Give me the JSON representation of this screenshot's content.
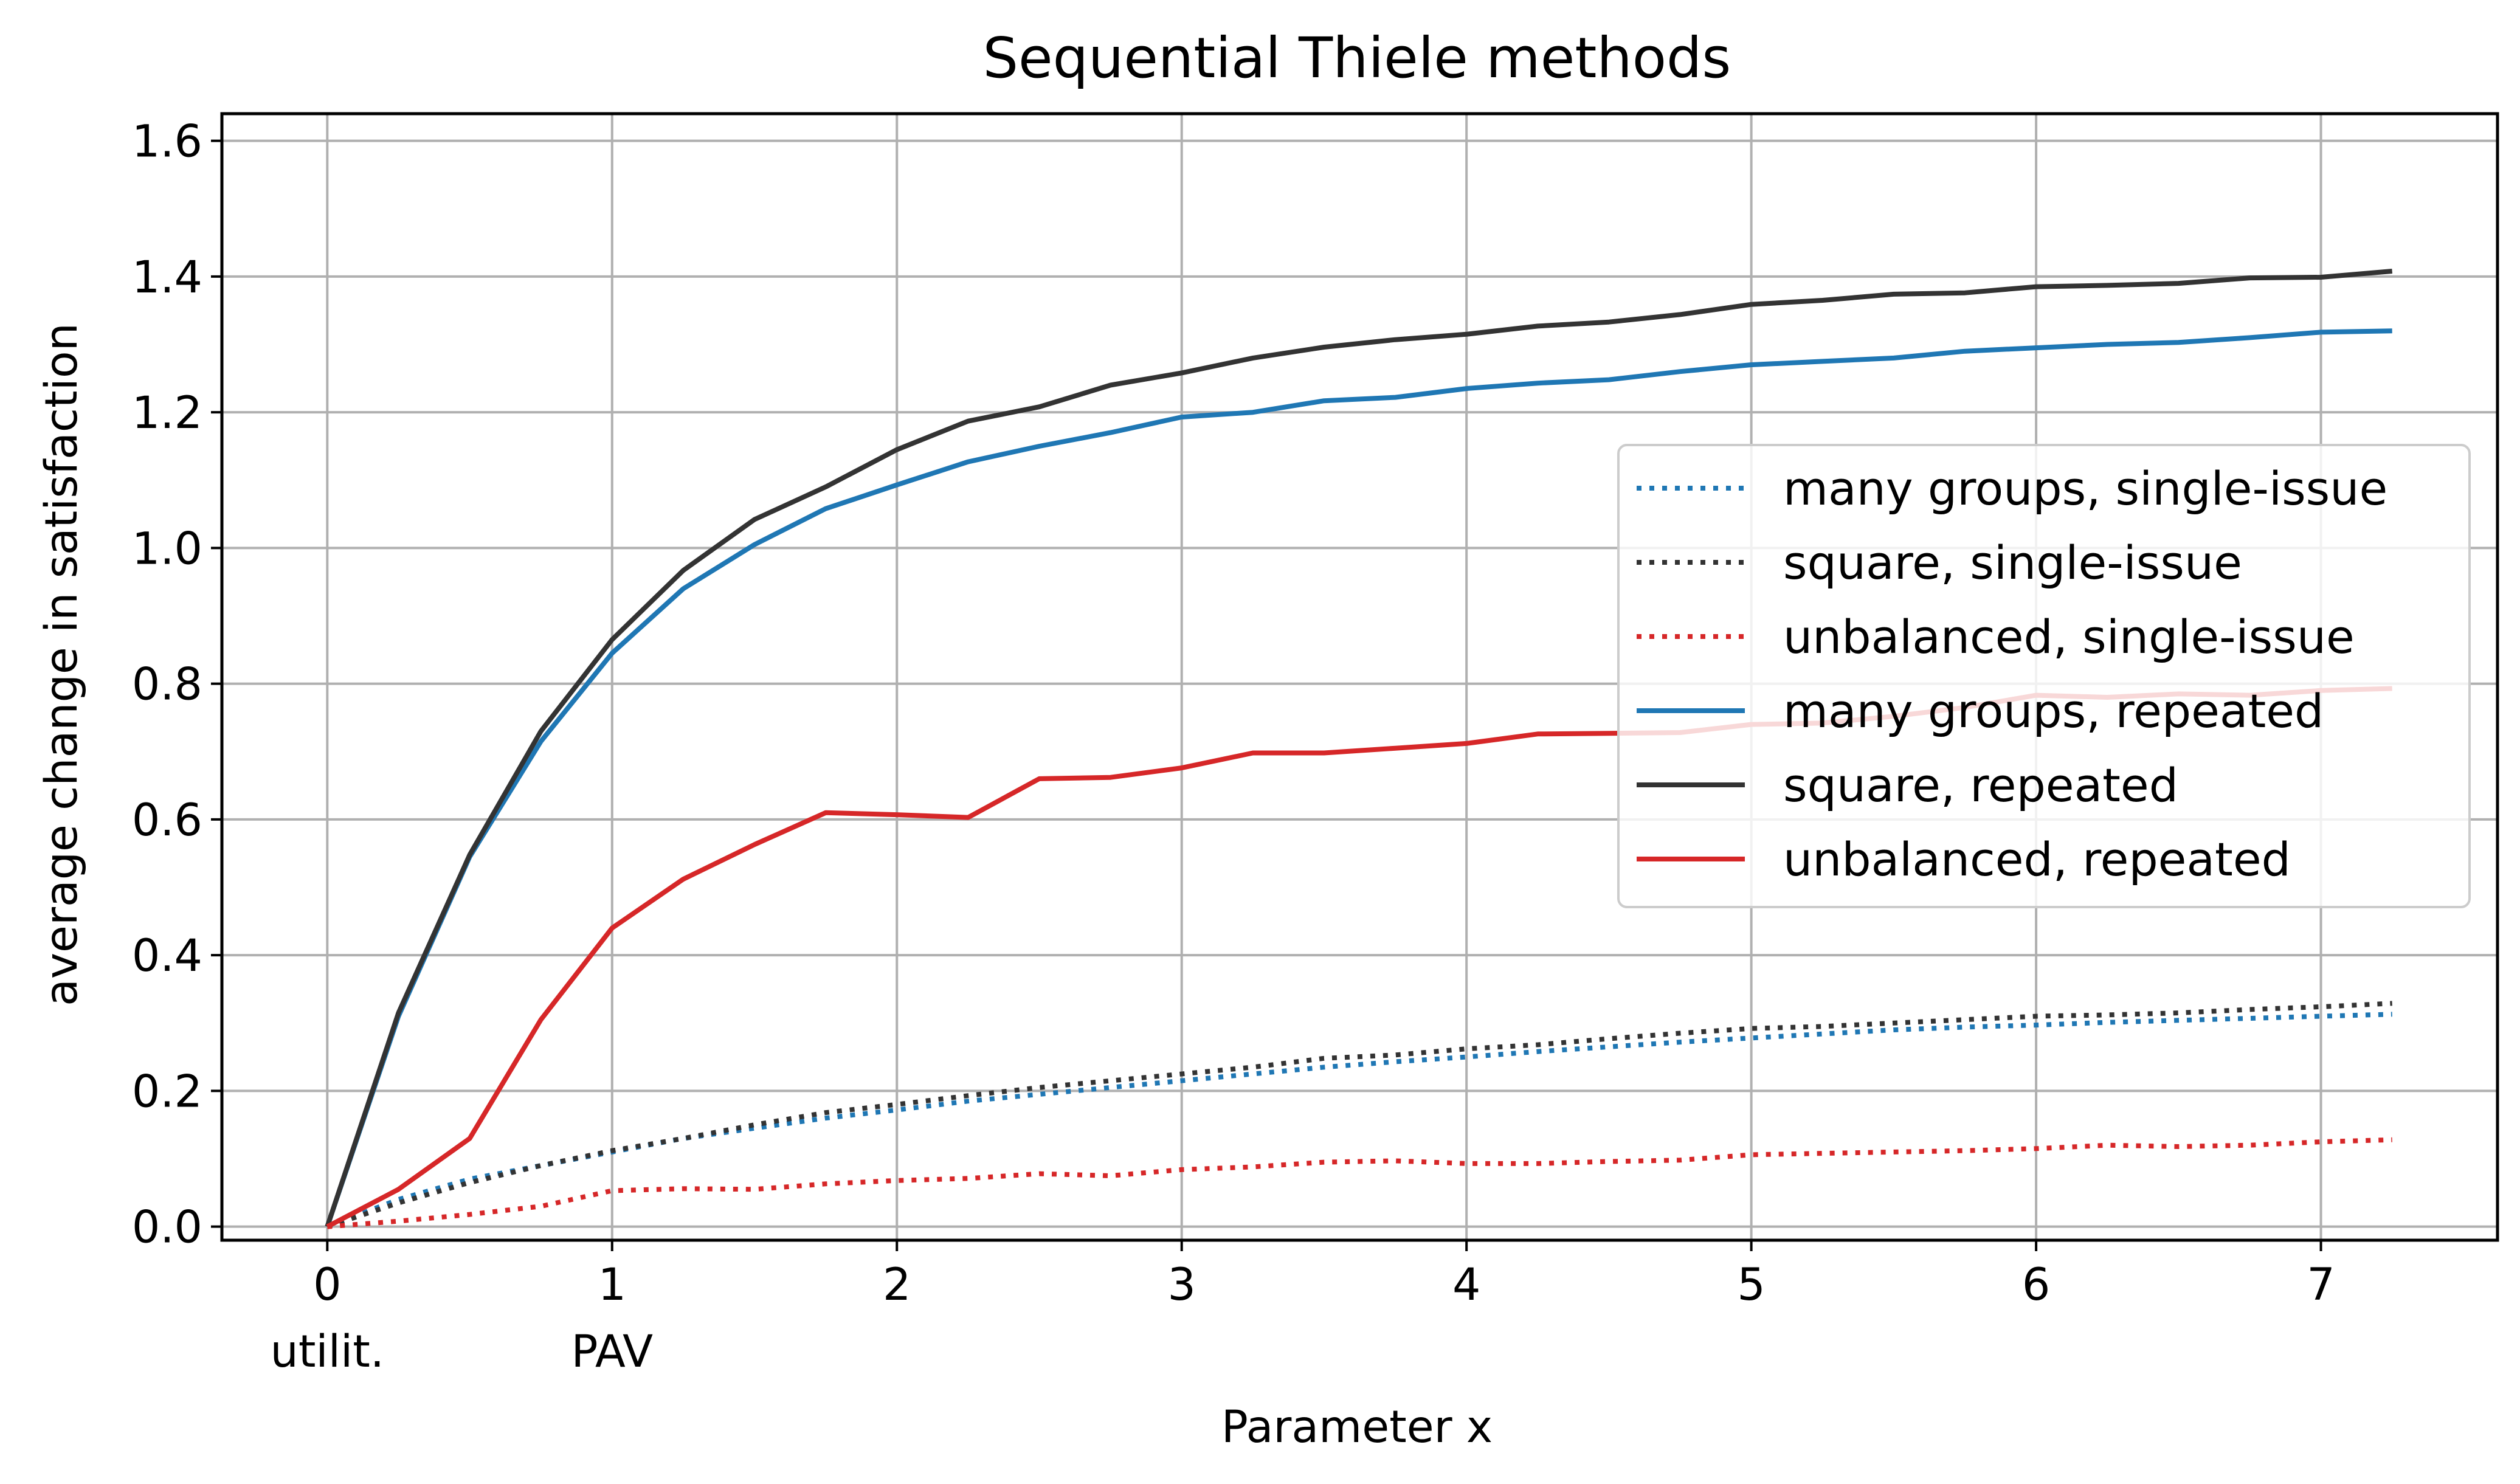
{
  "chart_data": {
    "type": "line",
    "title": "Sequential Thiele methods",
    "xlabel": "Parameter x",
    "ylabel": "average change in satisfaction",
    "xlim": [
      -0.37,
      7.62
    ],
    "ylim": [
      -0.02,
      1.64
    ],
    "x_ticks": [
      0,
      1,
      2,
      3,
      4,
      5,
      6,
      7
    ],
    "x_tick_labels": [
      "0",
      "1",
      "2",
      "3",
      "4",
      "5",
      "6",
      "7"
    ],
    "x_tick_sublabels": [
      {
        "x": 0,
        "text": "utilit."
      },
      {
        "x": 1,
        "text": "PAV"
      }
    ],
    "y_ticks": [
      0.0,
      0.2,
      0.4,
      0.6,
      0.8,
      1.0,
      1.2,
      1.4,
      1.6
    ],
    "y_tick_labels": [
      "0.0",
      "0.2",
      "0.4",
      "0.6",
      "0.8",
      "1.0",
      "1.2",
      "1.4",
      "1.6"
    ],
    "grid": true,
    "legend_position": "center-right",
    "x": [
      0,
      0.25,
      0.5,
      0.75,
      1.0,
      1.25,
      1.5,
      1.75,
      2.0,
      2.25,
      2.5,
      2.75,
      3.0,
      3.25,
      3.5,
      3.75,
      4.0,
      4.25,
      4.5,
      4.75,
      5.0,
      5.25,
      5.5,
      5.75,
      6.0,
      6.25,
      6.5,
      6.75,
      7.0,
      7.25
    ],
    "series": [
      {
        "name": "many groups, single-issue",
        "color": "#1f77b4",
        "style": "dotted",
        "values": [
          0.0,
          0.04,
          0.07,
          0.09,
          0.11,
          0.13,
          0.145,
          0.16,
          0.172,
          0.185,
          0.195,
          0.205,
          0.215,
          0.225,
          0.235,
          0.243,
          0.25,
          0.258,
          0.265,
          0.272,
          0.278,
          0.284,
          0.29,
          0.294,
          0.297,
          0.301,
          0.304,
          0.307,
          0.31,
          0.313
        ]
      },
      {
        "name": "square, single-issue",
        "color": "#333333",
        "style": "dotted",
        "values": [
          0.0,
          0.035,
          0.065,
          0.09,
          0.112,
          0.13,
          0.15,
          0.168,
          0.18,
          0.193,
          0.205,
          0.215,
          0.225,
          0.235,
          0.248,
          0.253,
          0.262,
          0.268,
          0.277,
          0.285,
          0.292,
          0.295,
          0.3,
          0.305,
          0.31,
          0.312,
          0.315,
          0.32,
          0.324,
          0.329
        ]
      },
      {
        "name": "unbalanced, single-issue",
        "color": "#d62728",
        "style": "dotted",
        "values": [
          0.0,
          0.008,
          0.018,
          0.03,
          0.053,
          0.056,
          0.055,
          0.063,
          0.068,
          0.071,
          0.078,
          0.075,
          0.084,
          0.088,
          0.095,
          0.097,
          0.093,
          0.093,
          0.096,
          0.098,
          0.106,
          0.108,
          0.11,
          0.112,
          0.115,
          0.12,
          0.118,
          0.12,
          0.125,
          0.128
        ]
      },
      {
        "name": "many groups, repeated",
        "color": "#1f77b4",
        "style": "solid",
        "values": [
          0.0,
          0.31,
          0.545,
          0.715,
          0.845,
          0.94,
          1.005,
          1.058,
          1.093,
          1.127,
          1.15,
          1.17,
          1.193,
          1.2,
          1.217,
          1.222,
          1.235,
          1.243,
          1.248,
          1.26,
          1.27,
          1.275,
          1.28,
          1.29,
          1.295,
          1.3,
          1.303,
          1.31,
          1.318,
          1.32
        ]
      },
      {
        "name": "square, repeated",
        "color": "#333333",
        "style": "solid",
        "values": [
          0.0,
          0.315,
          0.548,
          0.73,
          0.865,
          0.967,
          1.042,
          1.09,
          1.145,
          1.187,
          1.208,
          1.24,
          1.258,
          1.28,
          1.296,
          1.307,
          1.315,
          1.327,
          1.333,
          1.344,
          1.359,
          1.365,
          1.374,
          1.376,
          1.385,
          1.387,
          1.39,
          1.398,
          1.399,
          1.408
        ]
      },
      {
        "name": "unbalanced, repeated",
        "color": "#d62728",
        "style": "solid",
        "values": [
          0.0,
          0.055,
          0.13,
          0.305,
          0.44,
          0.512,
          0.563,
          0.61,
          0.607,
          0.603,
          0.66,
          0.662,
          0.676,
          0.698,
          0.698,
          0.705,
          0.712,
          0.726,
          0.727,
          0.728,
          0.74,
          0.742,
          0.752,
          0.765,
          0.783,
          0.78,
          0.785,
          0.783,
          0.79,
          0.793
        ]
      }
    ]
  }
}
